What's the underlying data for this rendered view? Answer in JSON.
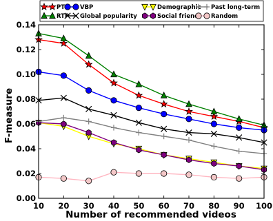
{
  "chart_data": {
    "type": "line",
    "title": "",
    "xlabel": "Number of recommended videos",
    "ylabel": "F-measure",
    "xlim": [
      10,
      100
    ],
    "ylim": [
      0,
      0.14
    ],
    "x": [
      10,
      20,
      30,
      40,
      50,
      60,
      70,
      80,
      90,
      100
    ],
    "xticks": [
      "10",
      "20",
      "30",
      "40",
      "50",
      "60",
      "70",
      "80",
      "90",
      "100"
    ],
    "yticks": [
      "0.00",
      "0.02",
      "0.04",
      "0.06",
      "0.08",
      "0.10",
      "0.12",
      "0.14"
    ],
    "grid": false,
    "legend_position": "top",
    "series": [
      {
        "name": "PTP",
        "color": "#ff0000",
        "marker": "star",
        "values": [
          0.128,
          0.125,
          0.108,
          0.093,
          0.083,
          0.076,
          0.07,
          0.066,
          0.062,
          0.057
        ]
      },
      {
        "name": "RTP",
        "color": "#008000",
        "marker": "triangle-up",
        "values": [
          0.133,
          0.129,
          0.115,
          0.1,
          0.092,
          0.083,
          0.076,
          0.07,
          0.064,
          0.059
        ]
      },
      {
        "name": "VBP",
        "color": "#0000ff",
        "marker": "circle",
        "values": [
          0.102,
          0.099,
          0.087,
          0.079,
          0.073,
          0.068,
          0.064,
          0.06,
          0.057,
          0.055
        ]
      },
      {
        "name": "Global popularity",
        "color": "#000000",
        "marker": "x",
        "values": [
          0.079,
          0.081,
          0.072,
          0.067,
          0.061,
          0.056,
          0.053,
          0.052,
          0.049,
          0.045
        ]
      },
      {
        "name": "Demographic",
        "color": "#ffff00",
        "marker": "triangle-down",
        "values": [
          0.061,
          0.058,
          0.05,
          0.044,
          0.04,
          0.035,
          0.032,
          0.029,
          0.026,
          0.024
        ]
      },
      {
        "name": "Social friend",
        "color": "#800080",
        "marker": "hexagon",
        "values": [
          0.061,
          0.06,
          0.053,
          0.045,
          0.039,
          0.035,
          0.031,
          0.028,
          0.026,
          0.023
        ]
      },
      {
        "name": "Past long-term",
        "color": "#808080",
        "marker": "plus",
        "values": [
          0.062,
          0.065,
          0.062,
          0.057,
          0.053,
          0.05,
          0.047,
          0.042,
          0.038,
          0.036
        ]
      },
      {
        "name": "Random",
        "color": "#ffb6c1",
        "marker": "circle-open",
        "values": [
          0.017,
          0.016,
          0.014,
          0.021,
          0.02,
          0.02,
          0.019,
          0.017,
          0.016,
          0.017
        ]
      }
    ]
  }
}
